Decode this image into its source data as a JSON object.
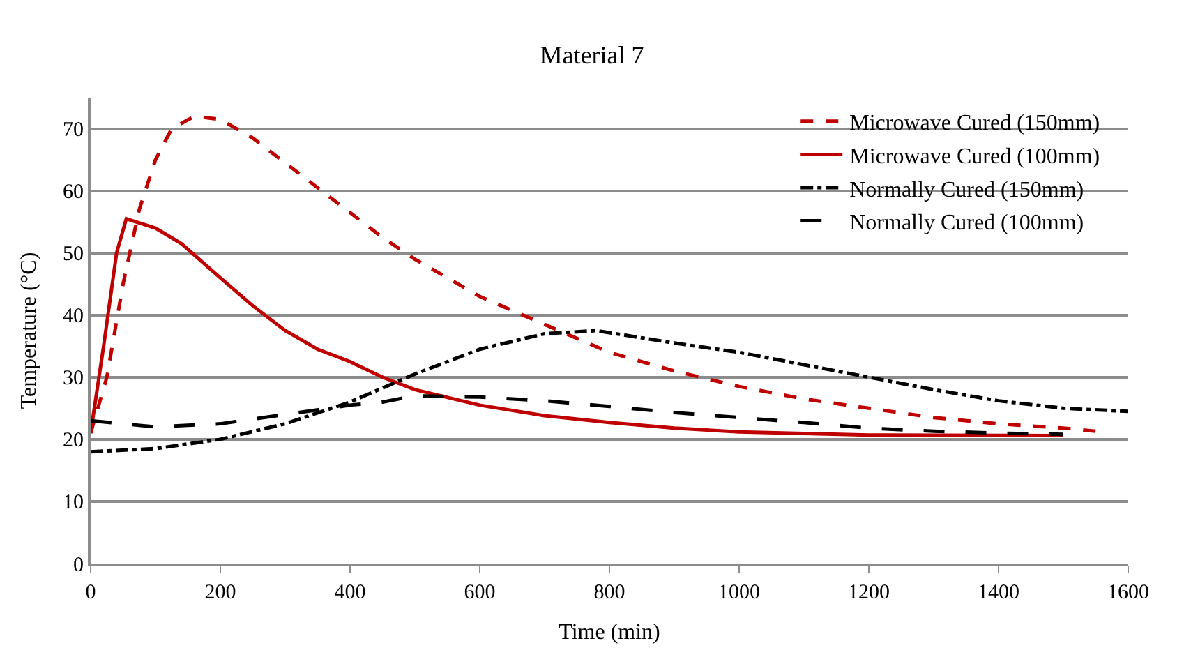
{
  "chart_data": {
    "type": "line",
    "title": "Material 7",
    "xlabel": "Time (min)",
    "ylabel": "Temperature (°C)",
    "xlim": [
      0,
      1600
    ],
    "xticks": [
      0,
      200,
      400,
      600,
      800,
      1000,
      1200,
      1400,
      1600
    ],
    "ylim": [
      0,
      75
    ],
    "yticks": [
      0,
      10,
      20,
      30,
      40,
      50,
      60,
      70
    ],
    "grid": "y",
    "legend": "top right",
    "marker": "none",
    "series": [
      {
        "name": "Microwave Cured (150mm)",
        "color": "#c00000",
        "line_style": "dashed",
        "x": [
          0,
          25,
          50,
          75,
          100,
          125,
          160,
          200,
          250,
          300,
          350,
          400,
          450,
          500,
          600,
          700,
          800,
          900,
          1000,
          1100,
          1200,
          1300,
          1400,
          1500,
          1550
        ],
        "values": [
          21,
          30,
          45,
          57,
          65,
          70,
          72,
          71.5,
          68.5,
          64.5,
          60.5,
          56.5,
          52.5,
          49,
          43,
          38.5,
          34,
          31,
          28.5,
          26.5,
          25,
          23.5,
          22.5,
          21.8,
          21.3
        ]
      },
      {
        "name": "Microwave Cured (100mm)",
        "color": "#c00000",
        "line_style": "solid",
        "x": [
          0,
          20,
          40,
          55,
          70,
          100,
          140,
          200,
          250,
          300,
          350,
          400,
          450,
          500,
          600,
          700,
          800,
          900,
          1000,
          1200,
          1500
        ],
        "values": [
          21,
          35,
          50,
          55.5,
          55,
          54,
          51.5,
          46,
          41.5,
          37.5,
          34.5,
          32.5,
          30,
          28,
          25.5,
          23.8,
          22.7,
          21.8,
          21.2,
          20.7,
          20.6
        ]
      },
      {
        "name": "Normally Cured (150mm)",
        "color": "#000000",
        "line_style": "dashdot",
        "x": [
          0,
          100,
          200,
          300,
          400,
          500,
          600,
          700,
          780,
          900,
          1000,
          1100,
          1200,
          1300,
          1400,
          1500,
          1600
        ],
        "values": [
          18,
          18.5,
          20,
          22.5,
          26,
          30.5,
          34.5,
          37,
          37.5,
          35.5,
          34,
          32,
          30,
          28,
          26.2,
          25,
          24.5
        ]
      },
      {
        "name": "Normally Cured (100mm)",
        "color": "#000000",
        "line_style": "longdash",
        "x": [
          0,
          100,
          200,
          300,
          400,
          450,
          500,
          600,
          700,
          800,
          900,
          1000,
          1100,
          1200,
          1300,
          1400,
          1500
        ],
        "values": [
          23,
          22,
          22.5,
          24,
          25.5,
          26,
          27,
          26.8,
          26.2,
          25.3,
          24.3,
          23.5,
          22.7,
          21.8,
          21.3,
          21,
          20.8
        ]
      }
    ]
  }
}
